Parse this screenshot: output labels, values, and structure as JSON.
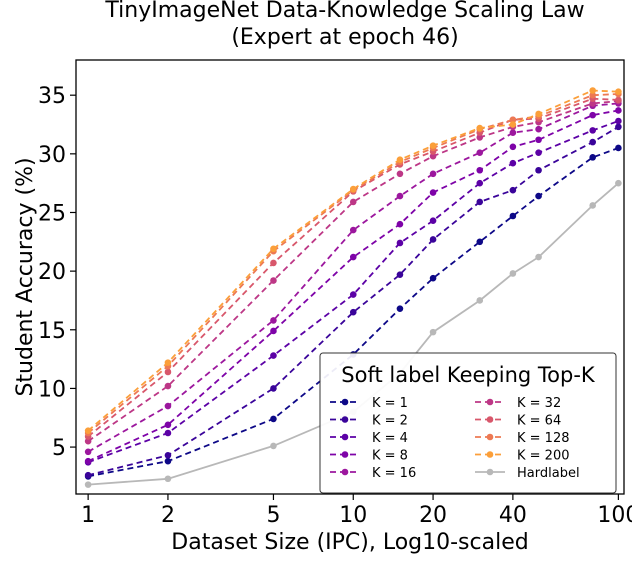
{
  "chart_data": {
    "type": "line",
    "title": "TinyImageNet Data-Knowledge Scaling Law",
    "subtitle": "(Expert at epoch 46)",
    "xlabel": "Dataset Size (IPC), Log10-scaled",
    "ylabel": "Student Accuracy (%)",
    "x_scale": "log10",
    "xlim": [
      0.9,
      105
    ],
    "ylim": [
      1,
      38
    ],
    "x_ticks": [
      1,
      2,
      5,
      10,
      20,
      40,
      100
    ],
    "x_tick_labels": [
      "1",
      "2",
      "5",
      "10",
      "20",
      "40",
      "100"
    ],
    "y_ticks": [
      5,
      10,
      15,
      20,
      25,
      30,
      35
    ],
    "y_tick_labels": [
      "5",
      "10",
      "15",
      "20",
      "25",
      "30",
      "35"
    ],
    "grid": false,
    "legend": {
      "title": "Soft label Keeping Top-K",
      "position": "lower right",
      "columns": 2
    },
    "x": [
      1,
      2,
      5,
      10,
      15,
      20,
      30,
      40,
      50,
      80,
      100
    ],
    "series": [
      {
        "name": "K = 1",
        "color": "#0d0887",
        "style": "dashed",
        "values": [
          2.5,
          3.8,
          7.4,
          12.9,
          16.8,
          19.4,
          22.5,
          24.7,
          26.4,
          29.7,
          30.5
        ]
      },
      {
        "name": "K = 2",
        "color": "#3a049a",
        "style": "dashed",
        "values": [
          2.6,
          4.3,
          10.0,
          16.5,
          19.7,
          22.7,
          25.9,
          26.9,
          28.6,
          31.0,
          32.3
        ]
      },
      {
        "name": "K = 4",
        "color": "#5c01a6",
        "style": "dashed",
        "values": [
          3.7,
          6.2,
          12.8,
          18.0,
          22.4,
          24.3,
          27.5,
          29.2,
          30.1,
          32.0,
          32.8
        ]
      },
      {
        "name": "K = 8",
        "color": "#7e03a8",
        "style": "dashed",
        "values": [
          3.8,
          6.9,
          14.9,
          21.2,
          24.0,
          26.7,
          28.6,
          30.6,
          31.2,
          33.3,
          33.7
        ]
      },
      {
        "name": "K = 16",
        "color": "#9c179e",
        "style": "dashed",
        "values": [
          4.6,
          8.5,
          15.8,
          23.5,
          26.4,
          28.3,
          30.1,
          31.8,
          32.1,
          34.1,
          34.3
        ]
      },
      {
        "name": "K = 32",
        "color": "#bd3786",
        "style": "dashed",
        "values": [
          5.5,
          10.2,
          19.2,
          25.9,
          28.3,
          29.8,
          31.4,
          32.3,
          32.7,
          34.3,
          34.5
        ]
      },
      {
        "name": "K = 64",
        "color": "#d8576b",
        "style": "dashed",
        "values": [
          5.9,
          11.4,
          20.7,
          26.8,
          29.1,
          30.2,
          31.8,
          32.9,
          33.0,
          34.7,
          34.6
        ]
      },
      {
        "name": "K = 128",
        "color": "#ed7953",
        "style": "dashed",
        "values": [
          6.2,
          11.9,
          21.7,
          26.9,
          29.3,
          30.5,
          32.1,
          32.9,
          33.2,
          35.0,
          35.1
        ]
      },
      {
        "name": "K = 200",
        "color": "#fb9f3a",
        "style": "dashed",
        "values": [
          6.4,
          12.2,
          21.9,
          27.0,
          29.5,
          30.7,
          32.2,
          32.5,
          33.4,
          35.4,
          35.3
        ]
      },
      {
        "name": "Hardlabel",
        "color": "#b8b8b8",
        "style": "solid",
        "values": [
          1.8,
          2.3,
          5.1,
          8.0,
          11.3,
          14.8,
          17.5,
          19.8,
          21.2,
          25.6,
          27.5
        ]
      }
    ]
  }
}
